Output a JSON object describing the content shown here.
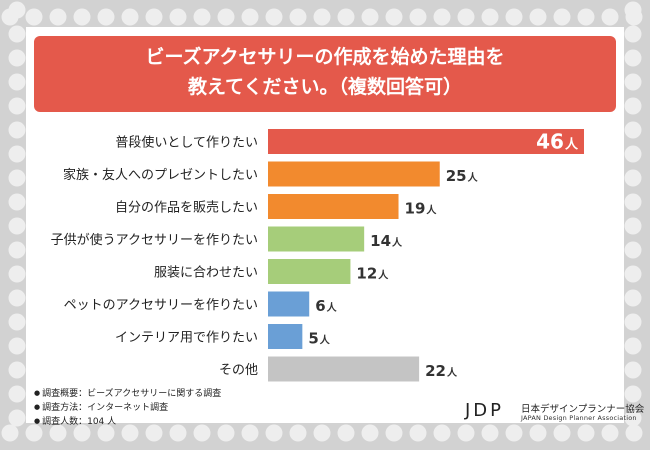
{
  "title_line1": "ビーズアクセサリーの作成を始めた理由を",
  "title_line2": "教えてください。（複数回答可）",
  "chart_data": {
    "type": "bar",
    "orientation": "horizontal",
    "title": "ビーズアクセサリーの作成を始めた理由を教えてください。（複数回答可）",
    "unit": "人",
    "categories": [
      "普段使いとして作りたい",
      "家族・友人へのプレゼントしたい",
      "自分の作品を販売したい",
      "子供が使うアクセサリーを作りたい",
      "服装に合わせたい",
      "ペットのアクセサリーを作りたい",
      "インテリア用で作りたい",
      "その他"
    ],
    "values": [
      46,
      25,
      19,
      14,
      12,
      6,
      5,
      22
    ],
    "colors": [
      "#e4594b",
      "#f28a2e",
      "#f28a2e",
      "#a6cd7a",
      "#a6cd7a",
      "#6a9fd6",
      "#6a9fd6",
      "#c4c4c4"
    ],
    "xlim": [
      0,
      46
    ]
  },
  "notes": [
    "調査概要：ビーズアクセサリーに関する調査",
    "調査方法：インターネット調査",
    "調査人数：104 人"
  ],
  "logo": {
    "mark": "JDP",
    "name_ja": "日本デザインプランナー協会",
    "name_en": "JAPAN Design Planner Association"
  }
}
